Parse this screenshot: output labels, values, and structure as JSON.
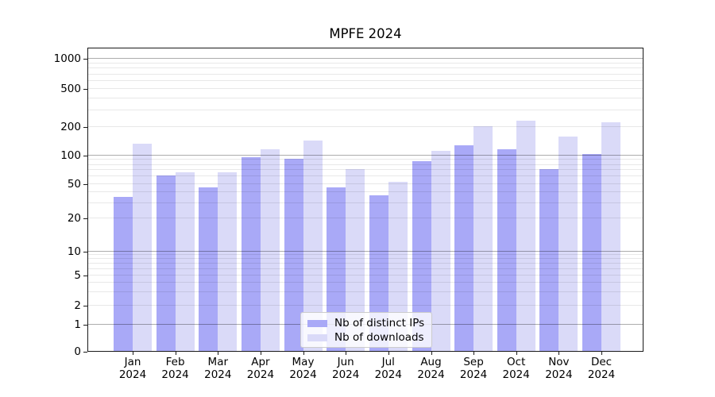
{
  "chart_data": {
    "type": "bar",
    "title": "MPFE 2024",
    "categories": [
      "Jan 2024",
      "Feb 2024",
      "Mar 2024",
      "Apr 2024",
      "May 2024",
      "Jun 2024",
      "Jul 2024",
      "Aug 2024",
      "Sep 2024",
      "Oct 2024",
      "Nov 2024",
      "Dec 2024"
    ],
    "series": [
      {
        "name": "Nb of distinct IPs",
        "color": "#a9a9f7",
        "values": [
          35,
          60,
          45,
          95,
          90,
          45,
          36,
          85,
          125,
          115,
          70,
          103
        ]
      },
      {
        "name": "Nb of downloads",
        "color": "#dadaf8",
        "values": [
          130,
          65,
          65,
          115,
          140,
          70,
          52,
          110,
          200,
          230,
          155,
          220
        ]
      }
    ],
    "yscale": "symlog",
    "yticks": [
      0,
      1,
      2,
      5,
      10,
      20,
      50,
      100,
      200,
      500,
      1000
    ],
    "ylim": [
      0,
      1360
    ],
    "xlabel": "",
    "ylabel": "",
    "grid": "on",
    "legend_position": "lower center",
    "colors": {
      "background": "#ffffff",
      "grid_major": "#adadad",
      "grid_minor": "#e8e8e8",
      "spine": "#1a1a1a"
    }
  }
}
